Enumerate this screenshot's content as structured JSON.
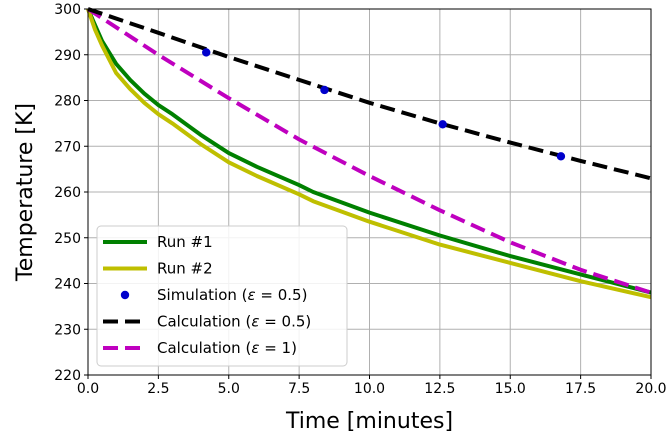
{
  "chart_data": {
    "type": "line",
    "title": "",
    "xlabel": "Time [minutes]",
    "ylabel": "Temperature [K]",
    "xlim": [
      0,
      20
    ],
    "ylim": [
      220,
      300
    ],
    "xticks": [
      0.0,
      2.5,
      5.0,
      7.5,
      10.0,
      12.5,
      15.0,
      17.5,
      20.0
    ],
    "xtick_labels": [
      "0.0",
      "2.5",
      "5.0",
      "7.5",
      "10.0",
      "12.5",
      "15.0",
      "17.5",
      "20.0"
    ],
    "yticks": [
      220,
      230,
      240,
      250,
      260,
      270,
      280,
      290,
      300
    ],
    "ytick_labels": [
      "220",
      "230",
      "240",
      "250",
      "260",
      "270",
      "280",
      "290",
      "300"
    ],
    "grid": true,
    "legend_position": "lower-left",
    "series": [
      {
        "name": "Run #1",
        "style": "solid",
        "color": "#008000",
        "x": [
          0,
          0.25,
          0.5,
          1.0,
          1.5,
          2.0,
          2.5,
          3.0,
          4.0,
          5.0,
          6.0,
          7.5,
          8.0,
          10.0,
          12.5,
          15.0,
          17.5,
          20.0
        ],
        "y": [
          300,
          296.5,
          293,
          288,
          284.5,
          281.5,
          279,
          277,
          272.5,
          268.5,
          265.5,
          261.5,
          260,
          255.5,
          250.5,
          246,
          242,
          238
        ]
      },
      {
        "name": "Run #2",
        "style": "solid",
        "color": "#bfbf00",
        "x": [
          0,
          0.25,
          0.5,
          1.0,
          1.5,
          2.0,
          2.5,
          3.0,
          4.0,
          5.0,
          6.0,
          7.5,
          8.0,
          10.0,
          12.5,
          15.0,
          17.5,
          20.0
        ],
        "y": [
          300,
          295.5,
          292,
          286,
          282.5,
          279.5,
          277,
          275,
          270.5,
          266.5,
          263.5,
          259.5,
          258,
          253.5,
          248.5,
          244.5,
          240.5,
          237
        ]
      },
      {
        "name": "Simulation ($\\varepsilon = 0.5$)",
        "legend_prefix": "Simulation (",
        "legend_symbol": "ε",
        "legend_suffix": " = 0.5)",
        "style": "markers",
        "color": "#0000cc",
        "x": [
          4.2,
          8.4,
          12.6,
          16.8
        ],
        "y": [
          290.5,
          282.3,
          274.8,
          267.8
        ]
      },
      {
        "name": "Calculation ($\\varepsilon = 0.5$)",
        "legend_prefix": "Calculation (",
        "legend_symbol": "ε",
        "legend_suffix": " = 0.5)",
        "style": "dashed",
        "color": "#000000",
        "x": [
          0,
          2.5,
          5.0,
          7.5,
          10.0,
          12.5,
          15.0,
          17.5,
          20.0
        ],
        "y": [
          300,
          294.8,
          289.5,
          284.5,
          279.5,
          275,
          270.8,
          266.8,
          263
        ]
      },
      {
        "name": "Calculation ($\\varepsilon = 1$)",
        "legend_prefix": "Calculation (",
        "legend_symbol": "ε",
        "legend_suffix": " = 1)",
        "style": "dashed",
        "color": "#bf00bf",
        "x": [
          0,
          2.5,
          5.0,
          7.5,
          10.0,
          12.5,
          15.0,
          17.5,
          20.0
        ],
        "y": [
          300,
          290,
          280.5,
          271.5,
          263.5,
          256,
          249,
          243,
          238
        ]
      }
    ]
  }
}
